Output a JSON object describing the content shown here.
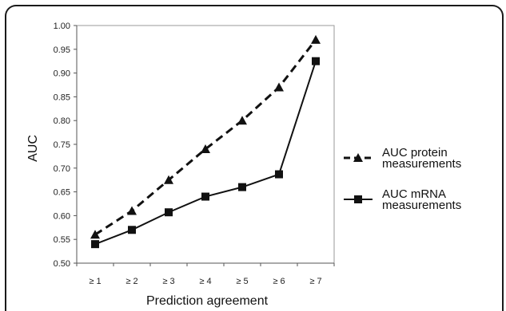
{
  "chart_data": {
    "type": "line",
    "xlabel": "Prediction agreement",
    "ylabel": "AUC",
    "categories": [
      "≥ 1",
      "≥ 2",
      "≥ 3",
      "≥ 4",
      "≥ 5",
      "≥ 6",
      "≥ 7"
    ],
    "ylim": [
      0.5,
      1.0
    ],
    "yticks": [
      "0.50",
      "0.55",
      "0.60",
      "0.65",
      "0.70",
      "0.75",
      "0.80",
      "0.85",
      "0.90",
      "0.95",
      "1.00"
    ],
    "grid": false,
    "legend_position": "right",
    "series": [
      {
        "name_lines": [
          "AUC protein",
          "measurements"
        ],
        "marker": "triangle",
        "line_style": "dashed",
        "color": "#111111",
        "values": [
          0.56,
          0.61,
          0.675,
          0.74,
          0.8,
          0.87,
          0.97
        ]
      },
      {
        "name_lines": [
          "AUC mRNA",
          "measurements"
        ],
        "marker": "square",
        "line_style": "solid",
        "color": "#111111",
        "values": [
          0.54,
          0.57,
          0.607,
          0.64,
          0.66,
          0.687,
          0.925
        ]
      }
    ]
  }
}
